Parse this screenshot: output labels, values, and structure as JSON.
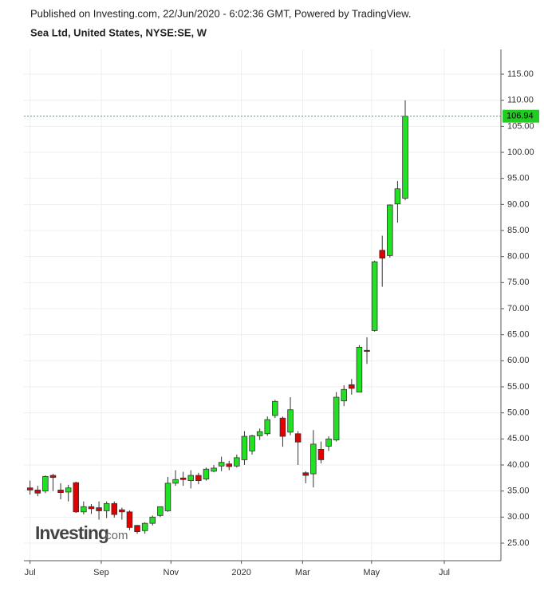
{
  "chart_data": {
    "type": "candlestick",
    "subtitle": "Published on Investing.com, 22/Jun/2020 - 6:02:36 GMT, Powered by TradingView.",
    "title": "Sea Ltd, United States, NYSE:SE, W",
    "watermark": {
      "brand": "Investing",
      "suffix": ".com"
    },
    "open": [
      35.6,
      35.2,
      35,
      38,
      35.2,
      34.8,
      36.6,
      31,
      32,
      31.8,
      31.2,
      32.6,
      31.4,
      31,
      28.4,
      27.4,
      28.8,
      30.3,
      31.2,
      36.5,
      37.5,
      37,
      38,
      37.3,
      38.8,
      39.8,
      40.2,
      39.8,
      41,
      42.7,
      45.6,
      46,
      49.5,
      49,
      46.3,
      46,
      38.5,
      38.3,
      43,
      43.6,
      44.8,
      52.3,
      55.4,
      54,
      62,
      65.8,
      81.2,
      80.2,
      90.1,
      91.2
    ],
    "high": [
      37,
      36,
      38,
      38.3,
      36.5,
      36.2,
      36.8,
      33,
      32.5,
      33,
      33,
      33,
      31.8,
      31.3,
      28.5,
      29,
      30.3,
      32,
      37.7,
      39,
      38.7,
      39,
      38.5,
      39.5,
      40,
      41.6,
      40.8,
      42,
      46.5,
      45.8,
      47,
      49.3,
      52.5,
      49.3,
      53,
      46.5,
      38.8,
      46.7,
      44.5,
      45.5,
      54,
      55.3,
      56.5,
      63,
      64.5,
      79.2,
      84,
      90,
      94.5,
      110
    ],
    "low": [
      34.3,
      34,
      34.6,
      35,
      33.4,
      33,
      30.8,
      30.5,
      30.6,
      29.5,
      29.8,
      29.9,
      29.5,
      27.5,
      26.8,
      26.8,
      28.4,
      30,
      31,
      36,
      36,
      35.5,
      36.3,
      37,
      38.6,
      38.8,
      39,
      39.5,
      40,
      42,
      44.8,
      45.6,
      49,
      43.5,
      45.7,
      40,
      36.5,
      35.7,
      40.3,
      42.7,
      44.5,
      51.3,
      53.5,
      54,
      59.4,
      65.6,
      74.2,
      79.8,
      86.5,
      90.8
    ],
    "close": [
      35.2,
      34.6,
      37.8,
      37.6,
      34.7,
      35.6,
      31,
      32,
      31.6,
      31.2,
      32.6,
      30.5,
      31,
      28,
      27.2,
      28.8,
      30,
      32,
      36.5,
      37.2,
      37.2,
      38,
      37,
      39.2,
      39.4,
      40.5,
      39.7,
      41.4,
      45.5,
      45.6,
      46.4,
      48.7,
      52.2,
      45.5,
      50.6,
      44.4,
      38,
      44,
      41,
      45,
      53,
      54.5,
      54.7,
      62.6,
      61.8,
      79,
      79.7,
      89.9,
      93,
      106.94
    ],
    "up_color": "#22e022",
    "down_color": "#e00000",
    "last_price": 106.94,
    "last_price_color": "#22cc22",
    "xlim": [
      -0.8,
      61.5
    ],
    "xticks": [
      {
        "value": 0,
        "label": "Jul"
      },
      {
        "value": 9.3,
        "label": "Sep"
      },
      {
        "value": 18.4,
        "label": "Nov"
      },
      {
        "value": 27.6,
        "label": "2020"
      },
      {
        "value": 35.6,
        "label": "Mar"
      },
      {
        "value": 44.6,
        "label": "May"
      },
      {
        "value": 54.1,
        "label": "Jul"
      }
    ],
    "ylim": [
      21.63,
      119.75
    ],
    "yticks": [
      {
        "value": 25,
        "label": "25.00"
      },
      {
        "value": 30,
        "label": "30.00"
      },
      {
        "value": 35,
        "label": "35.00"
      },
      {
        "value": 40,
        "label": "40.00"
      },
      {
        "value": 45,
        "label": "45.00"
      },
      {
        "value": 50,
        "label": "50.00"
      },
      {
        "value": 55,
        "label": "55.00"
      },
      {
        "value": 60,
        "label": "60.00"
      },
      {
        "value": 65,
        "label": "65.00"
      },
      {
        "value": 70,
        "label": "70.00"
      },
      {
        "value": 75,
        "label": "75.00"
      },
      {
        "value": 80,
        "label": "80.00"
      },
      {
        "value": 85,
        "label": "85.00"
      },
      {
        "value": 90,
        "label": "90.00"
      },
      {
        "value": 95,
        "label": "95.00"
      },
      {
        "value": 100,
        "label": "100.00"
      },
      {
        "value": 105,
        "label": "105.00"
      },
      {
        "value": 110,
        "label": "110.00"
      },
      {
        "value": 115,
        "label": "115.00"
      }
    ],
    "grid": true
  }
}
